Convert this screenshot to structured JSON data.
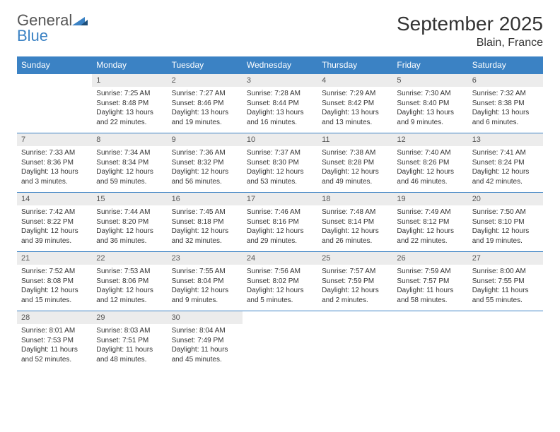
{
  "brand": {
    "name1": "General",
    "name2": "Blue"
  },
  "title": "September 2025",
  "location": "Blain, France",
  "colors": {
    "header_bg": "#3b82c4",
    "header_text": "#ffffff",
    "day_bg": "#ececec",
    "page_bg": "#ffffff",
    "text": "#333333",
    "brand_gray": "#555555",
    "brand_blue": "#3b82c4"
  },
  "weekdays": [
    "Sunday",
    "Monday",
    "Tuesday",
    "Wednesday",
    "Thursday",
    "Friday",
    "Saturday"
  ],
  "weeks": [
    [
      null,
      {
        "n": "1",
        "sr": "Sunrise: 7:25 AM",
        "ss": "Sunset: 8:48 PM",
        "dl": "Daylight: 13 hours and 22 minutes."
      },
      {
        "n": "2",
        "sr": "Sunrise: 7:27 AM",
        "ss": "Sunset: 8:46 PM",
        "dl": "Daylight: 13 hours and 19 minutes."
      },
      {
        "n": "3",
        "sr": "Sunrise: 7:28 AM",
        "ss": "Sunset: 8:44 PM",
        "dl": "Daylight: 13 hours and 16 minutes."
      },
      {
        "n": "4",
        "sr": "Sunrise: 7:29 AM",
        "ss": "Sunset: 8:42 PM",
        "dl": "Daylight: 13 hours and 13 minutes."
      },
      {
        "n": "5",
        "sr": "Sunrise: 7:30 AM",
        "ss": "Sunset: 8:40 PM",
        "dl": "Daylight: 13 hours and 9 minutes."
      },
      {
        "n": "6",
        "sr": "Sunrise: 7:32 AM",
        "ss": "Sunset: 8:38 PM",
        "dl": "Daylight: 13 hours and 6 minutes."
      }
    ],
    [
      {
        "n": "7",
        "sr": "Sunrise: 7:33 AM",
        "ss": "Sunset: 8:36 PM",
        "dl": "Daylight: 13 hours and 3 minutes."
      },
      {
        "n": "8",
        "sr": "Sunrise: 7:34 AM",
        "ss": "Sunset: 8:34 PM",
        "dl": "Daylight: 12 hours and 59 minutes."
      },
      {
        "n": "9",
        "sr": "Sunrise: 7:36 AM",
        "ss": "Sunset: 8:32 PM",
        "dl": "Daylight: 12 hours and 56 minutes."
      },
      {
        "n": "10",
        "sr": "Sunrise: 7:37 AM",
        "ss": "Sunset: 8:30 PM",
        "dl": "Daylight: 12 hours and 53 minutes."
      },
      {
        "n": "11",
        "sr": "Sunrise: 7:38 AM",
        "ss": "Sunset: 8:28 PM",
        "dl": "Daylight: 12 hours and 49 minutes."
      },
      {
        "n": "12",
        "sr": "Sunrise: 7:40 AM",
        "ss": "Sunset: 8:26 PM",
        "dl": "Daylight: 12 hours and 46 minutes."
      },
      {
        "n": "13",
        "sr": "Sunrise: 7:41 AM",
        "ss": "Sunset: 8:24 PM",
        "dl": "Daylight: 12 hours and 42 minutes."
      }
    ],
    [
      {
        "n": "14",
        "sr": "Sunrise: 7:42 AM",
        "ss": "Sunset: 8:22 PM",
        "dl": "Daylight: 12 hours and 39 minutes."
      },
      {
        "n": "15",
        "sr": "Sunrise: 7:44 AM",
        "ss": "Sunset: 8:20 PM",
        "dl": "Daylight: 12 hours and 36 minutes."
      },
      {
        "n": "16",
        "sr": "Sunrise: 7:45 AM",
        "ss": "Sunset: 8:18 PM",
        "dl": "Daylight: 12 hours and 32 minutes."
      },
      {
        "n": "17",
        "sr": "Sunrise: 7:46 AM",
        "ss": "Sunset: 8:16 PM",
        "dl": "Daylight: 12 hours and 29 minutes."
      },
      {
        "n": "18",
        "sr": "Sunrise: 7:48 AM",
        "ss": "Sunset: 8:14 PM",
        "dl": "Daylight: 12 hours and 26 minutes."
      },
      {
        "n": "19",
        "sr": "Sunrise: 7:49 AM",
        "ss": "Sunset: 8:12 PM",
        "dl": "Daylight: 12 hours and 22 minutes."
      },
      {
        "n": "20",
        "sr": "Sunrise: 7:50 AM",
        "ss": "Sunset: 8:10 PM",
        "dl": "Daylight: 12 hours and 19 minutes."
      }
    ],
    [
      {
        "n": "21",
        "sr": "Sunrise: 7:52 AM",
        "ss": "Sunset: 8:08 PM",
        "dl": "Daylight: 12 hours and 15 minutes."
      },
      {
        "n": "22",
        "sr": "Sunrise: 7:53 AM",
        "ss": "Sunset: 8:06 PM",
        "dl": "Daylight: 12 hours and 12 minutes."
      },
      {
        "n": "23",
        "sr": "Sunrise: 7:55 AM",
        "ss": "Sunset: 8:04 PM",
        "dl": "Daylight: 12 hours and 9 minutes."
      },
      {
        "n": "24",
        "sr": "Sunrise: 7:56 AM",
        "ss": "Sunset: 8:02 PM",
        "dl": "Daylight: 12 hours and 5 minutes."
      },
      {
        "n": "25",
        "sr": "Sunrise: 7:57 AM",
        "ss": "Sunset: 7:59 PM",
        "dl": "Daylight: 12 hours and 2 minutes."
      },
      {
        "n": "26",
        "sr": "Sunrise: 7:59 AM",
        "ss": "Sunset: 7:57 PM",
        "dl": "Daylight: 11 hours and 58 minutes."
      },
      {
        "n": "27",
        "sr": "Sunrise: 8:00 AM",
        "ss": "Sunset: 7:55 PM",
        "dl": "Daylight: 11 hours and 55 minutes."
      }
    ],
    [
      {
        "n": "28",
        "sr": "Sunrise: 8:01 AM",
        "ss": "Sunset: 7:53 PM",
        "dl": "Daylight: 11 hours and 52 minutes."
      },
      {
        "n": "29",
        "sr": "Sunrise: 8:03 AM",
        "ss": "Sunset: 7:51 PM",
        "dl": "Daylight: 11 hours and 48 minutes."
      },
      {
        "n": "30",
        "sr": "Sunrise: 8:04 AM",
        "ss": "Sunset: 7:49 PM",
        "dl": "Daylight: 11 hours and 45 minutes."
      },
      null,
      null,
      null,
      null
    ]
  ]
}
